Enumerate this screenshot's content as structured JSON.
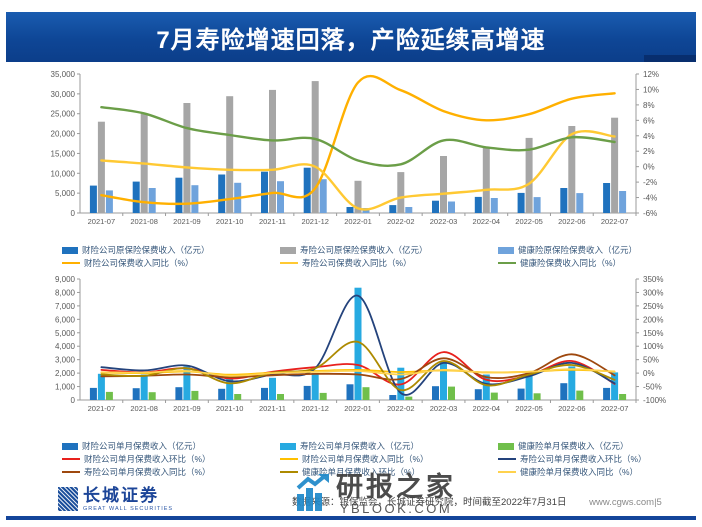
{
  "title": "7月寿险增速回落，产险延续高增速",
  "chart_data": [
    {
      "type": "bar+line",
      "name": "cumulative-premium-chart",
      "categories": [
        "2021-07",
        "2021-08",
        "2021-09",
        "2021-10",
        "2021-11",
        "2021-12",
        "2022-01",
        "2022-02",
        "2022-03",
        "2022-04",
        "2022-05",
        "2022-06",
        "2022-07"
      ],
      "left_axis": {
        "min": 0,
        "max": 35000,
        "step": 5000,
        "format": "thousands"
      },
      "right_axis": {
        "min": -6,
        "max": 12,
        "step": 2,
        "format": "percent"
      },
      "grid": false,
      "legend_position": "bottom",
      "bar_series": [
        {
          "name": "财险公司原保险保费收入（亿元）",
          "color": "#1F72BE",
          "values": [
            6900,
            7900,
            8900,
            9700,
            10400,
            11400,
            1520,
            2000,
            3100,
            4050,
            5050,
            6300,
            7550
          ]
        },
        {
          "name": "寿险公司原保险保费收入（亿元）",
          "color": "#A6A6A6",
          "values": [
            23000,
            25000,
            27700,
            29400,
            31000,
            33200,
            8100,
            10300,
            14350,
            16650,
            18900,
            21900,
            24000
          ]
        },
        {
          "name": "健康险原保险保费收入（亿元）",
          "color": "#6FA3DC",
          "values": [
            5700,
            6300,
            7000,
            7600,
            8000,
            8500,
            1260,
            1500,
            2900,
            3780,
            4000,
            5000,
            5550
          ]
        }
      ],
      "line_series": [
        {
          "name": "财险公司保费收入同比（%）",
          "color": "#FFB000",
          "values": [
            -3.7,
            -4.6,
            -4.8,
            -4.2,
            -3.4,
            -2.8,
            10.9,
            9.9,
            7.2,
            6.0,
            6.8,
            8.8,
            9.5
          ]
        },
        {
          "name": "寿险公司保费收入同比（%）",
          "color": "#FFC933",
          "values": [
            0.8,
            0.4,
            -0.1,
            -0.4,
            -0.4,
            0.0,
            -5.4,
            -4.0,
            -3.5,
            -3.0,
            -2.2,
            4.2,
            3.9
          ]
        },
        {
          "name": "健康险保费收入同比（%）",
          "color": "#6B9E48",
          "values": [
            7.7,
            6.9,
            5.0,
            4.1,
            3.4,
            3.6,
            0.8,
            0.3,
            3.4,
            2.5,
            2.2,
            3.8,
            3.2
          ]
        }
      ]
    },
    {
      "type": "bar+line",
      "name": "monthly-premium-chart",
      "categories": [
        "2021-07",
        "2021-08",
        "2021-09",
        "2021-10",
        "2021-11",
        "2021-12",
        "2022-01",
        "2022-02",
        "2022-03",
        "2022-04",
        "2022-05",
        "2022-06",
        "2022-07"
      ],
      "left_axis": {
        "min": 0,
        "max": 9000,
        "step": 1000,
        "format": "thousands"
      },
      "right_axis": {
        "min": -100,
        "max": 350,
        "step": 50,
        "format": "percent"
      },
      "grid": false,
      "legend_position": "bottom",
      "bar_series": [
        {
          "name": "财险公司单月保费收入（亿元）",
          "color": "#1F72BE",
          "values": [
            900,
            880,
            950,
            830,
            900,
            1050,
            1170,
            370,
            1030,
            800,
            850,
            1250,
            900
          ]
        },
        {
          "name": "寿险公司单月保费收入（亿元）",
          "color": "#27AAE1",
          "values": [
            1950,
            1900,
            2500,
            1700,
            1650,
            2000,
            8350,
            2400,
            2850,
            1900,
            2100,
            2500,
            2050
          ]
        },
        {
          "name": "健康险单月保费收入（亿元）",
          "color": "#70BF4B",
          "values": [
            600,
            580,
            680,
            450,
            450,
            530,
            950,
            250,
            1000,
            550,
            500,
            700,
            450
          ]
        }
      ],
      "line_series": [
        {
          "name": "财险公司单月保费收入环比（%）",
          "color": "#E8211D",
          "values": [
            12,
            3,
            18,
            -20,
            5,
            22,
            30,
            -42,
            78,
            -25,
            -8,
            45,
            -40
          ]
        },
        {
          "name": "财险公司单月保费收入同比（%）",
          "color": "#FFC000",
          "values": [
            2,
            0,
            6,
            -6,
            2,
            8,
            12,
            4,
            10,
            3,
            5,
            12,
            6
          ]
        },
        {
          "name": "寿险公司单月保费收入环比（%）",
          "color": "#24437C",
          "values": [
            22,
            10,
            28,
            -30,
            -5,
            18,
            288,
            -74,
            38,
            -40,
            -12,
            38,
            -38
          ]
        },
        {
          "name": "寿险公司单月保费收入同比（%）",
          "color": "#9E480E",
          "values": [
            -12,
            -10,
            -5,
            -15,
            -8,
            -3,
            -5,
            -22,
            55,
            -15,
            0,
            70,
            -8
          ]
        },
        {
          "name": "健康险单月保费收入环比（%）",
          "color": "#AD8A00",
          "values": [
            -5,
            -10,
            18,
            -38,
            2,
            18,
            116,
            -63,
            45,
            -45,
            -5,
            30,
            -25
          ]
        },
        {
          "name": "健康险单月保费收入同比（%）",
          "color": "#FFD24D",
          "values": [
            3,
            2,
            8,
            -10,
            0,
            5,
            8,
            -5,
            12,
            2,
            5,
            15,
            5
          ]
        }
      ]
    }
  ],
  "footer": {
    "logo_cn": "长城证券",
    "logo_en": "GREAT WALL SECURITIES",
    "source_text": "数据来源：银保监会，长城证券研究院，时间截至2022年7月31日",
    "site_text": "www.cgws.com|5"
  },
  "watermark": {
    "title": "研报之家",
    "subtitle": "YBLOOK.COM"
  },
  "colors": {
    "title_bar": "#0E4696",
    "title_accent": "#082E6E",
    "axis_text": "#595959",
    "axis_line": "#9B9B9B",
    "legend_text": "#35567A",
    "bottom_rule": "#14459A",
    "watermark_blue": "#1E88C9"
  }
}
